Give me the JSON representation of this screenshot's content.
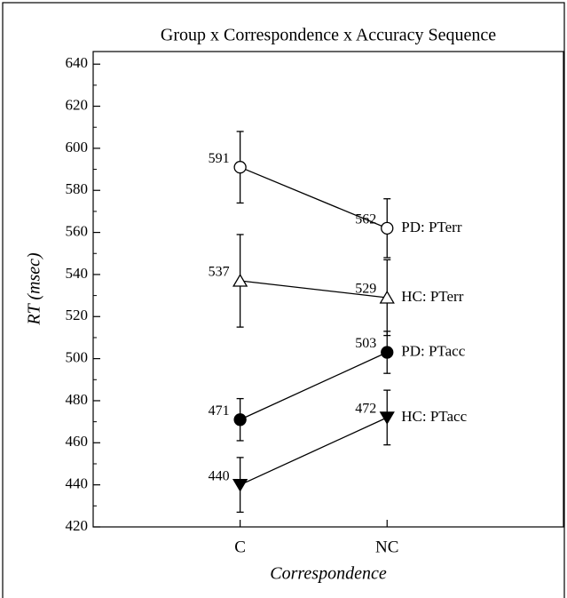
{
  "chart_data": {
    "type": "line",
    "title": "Group x Correspondence x Accuracy Sequence",
    "xlabel": "Correspondence",
    "ylabel": "RT (msec)",
    "categories": [
      "C",
      "NC"
    ],
    "ylim": [
      420,
      646
    ],
    "yticks": [
      420,
      440,
      460,
      480,
      500,
      520,
      540,
      560,
      580,
      600,
      620,
      640
    ],
    "yminorticks": [
      430,
      450,
      470,
      490,
      510,
      530,
      550,
      570,
      590,
      610,
      630
    ],
    "series": [
      {
        "name": "PD: PTerr",
        "color": "#000000",
        "marker": "circle-open",
        "values": [
          591,
          562
        ],
        "errors": [
          17,
          14
        ]
      },
      {
        "name": "HC: PTerr",
        "color": "#000000",
        "marker": "triangle-open",
        "values": [
          537,
          529
        ],
        "errors": [
          22,
          18
        ]
      },
      {
        "name": "PD: PTacc",
        "color": "#000000",
        "marker": "circle-filled",
        "values": [
          471,
          503
        ],
        "errors": [
          10,
          10
        ]
      },
      {
        "name": "HC: PTacc",
        "color": "#000000",
        "marker": "triangle-down-filled",
        "values": [
          440,
          472
        ],
        "errors": [
          13,
          13
        ]
      }
    ]
  }
}
